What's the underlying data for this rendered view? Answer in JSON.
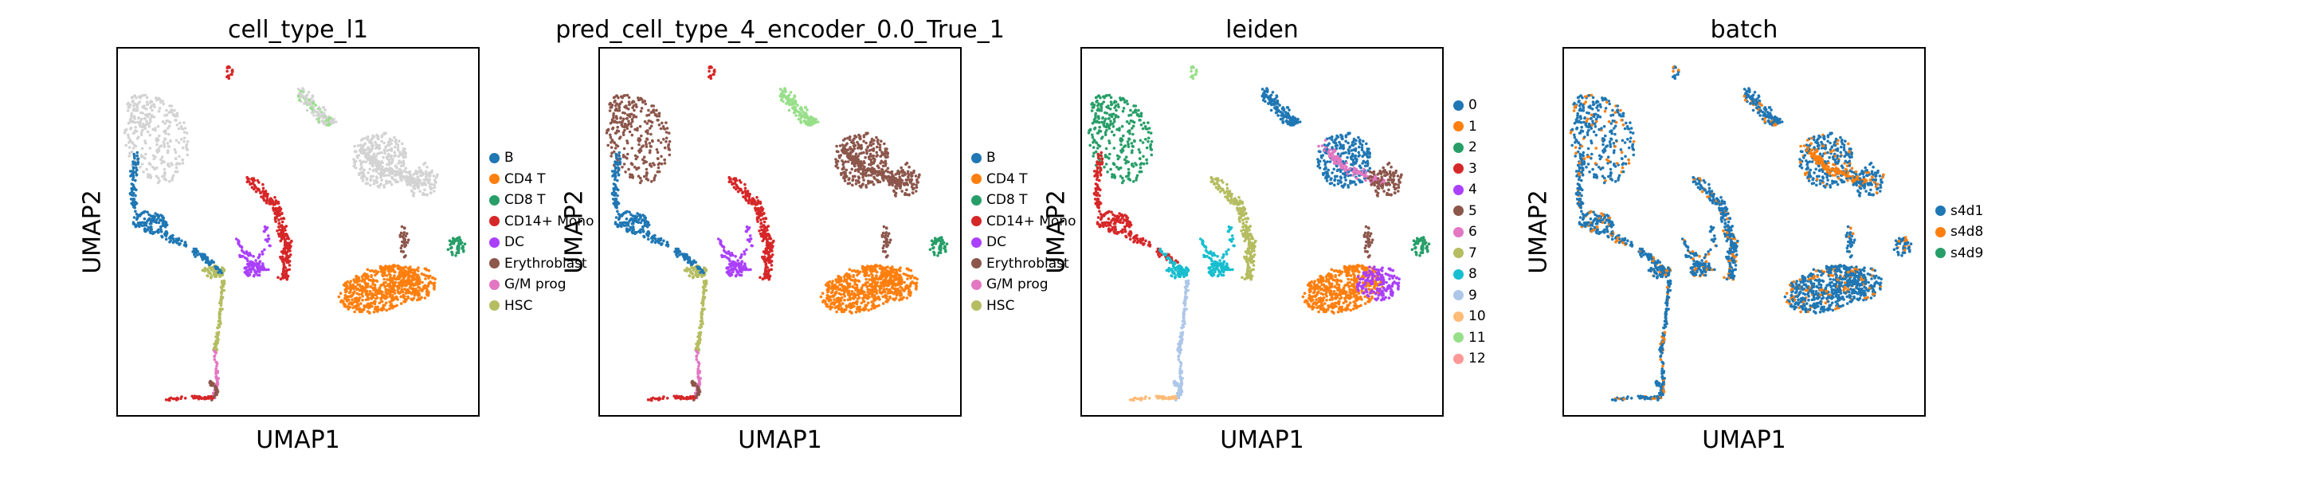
{
  "chart_data": [
    {
      "type": "scatter",
      "title": "cell_type_l1",
      "xlabel": "UMAP1",
      "ylabel": "UMAP2",
      "legend_position": "right",
      "grid": false,
      "series": [
        {
          "name": "B",
          "color": "#1f77b4"
        },
        {
          "name": "CD4 T",
          "color": "#ff7f0e"
        },
        {
          "name": "CD8 T",
          "color": "#279e68"
        },
        {
          "name": "CD14+ Mono",
          "color": "#d62728"
        },
        {
          "name": "DC",
          "color": "#aa40fc"
        },
        {
          "name": "Erythroblast",
          "color": "#8c564b"
        },
        {
          "name": "G/M prog",
          "color": "#e377c2"
        },
        {
          "name": "HSC",
          "color": "#b5bd61"
        }
      ]
    },
    {
      "type": "scatter",
      "title": "pred_cell_type_4_encoder_0.0_True_1",
      "xlabel": "UMAP1",
      "ylabel": "UMAP2",
      "legend_position": "right",
      "grid": false,
      "series": [
        {
          "name": "B",
          "color": "#1f77b4"
        },
        {
          "name": "CD4 T",
          "color": "#ff7f0e"
        },
        {
          "name": "CD8 T",
          "color": "#279e68"
        },
        {
          "name": "CD14+ Mono",
          "color": "#d62728"
        },
        {
          "name": "DC",
          "color": "#aa40fc"
        },
        {
          "name": "Erythroblast",
          "color": "#8c564b"
        },
        {
          "name": "G/M prog",
          "color": "#e377c2"
        },
        {
          "name": "HSC",
          "color": "#b5bd61"
        }
      ]
    },
    {
      "type": "scatter",
      "title": "leiden",
      "xlabel": "UMAP1",
      "ylabel": "UMAP2",
      "legend_position": "right",
      "grid": false,
      "series": [
        {
          "name": "0",
          "color": "#1f77b4"
        },
        {
          "name": "1",
          "color": "#ff7f0e"
        },
        {
          "name": "2",
          "color": "#279e68"
        },
        {
          "name": "3",
          "color": "#d62728"
        },
        {
          "name": "4",
          "color": "#aa40fc"
        },
        {
          "name": "5",
          "color": "#8c564b"
        },
        {
          "name": "6",
          "color": "#e377c2"
        },
        {
          "name": "7",
          "color": "#b5bd61"
        },
        {
          "name": "8",
          "color": "#17becf"
        },
        {
          "name": "9",
          "color": "#aec7e8"
        },
        {
          "name": "10",
          "color": "#ffbb78"
        },
        {
          "name": "11",
          "color": "#98df8a"
        },
        {
          "name": "12",
          "color": "#ff9896"
        }
      ]
    },
    {
      "type": "scatter",
      "title": "batch",
      "xlabel": "UMAP1",
      "ylabel": "UMAP2",
      "legend_position": "right",
      "grid": false,
      "series": [
        {
          "name": "s4d1",
          "color": "#1f77b4"
        },
        {
          "name": "s4d8",
          "color": "#ff7f0e"
        },
        {
          "name": "s4d9",
          "color": "#279e68"
        }
      ]
    }
  ]
}
